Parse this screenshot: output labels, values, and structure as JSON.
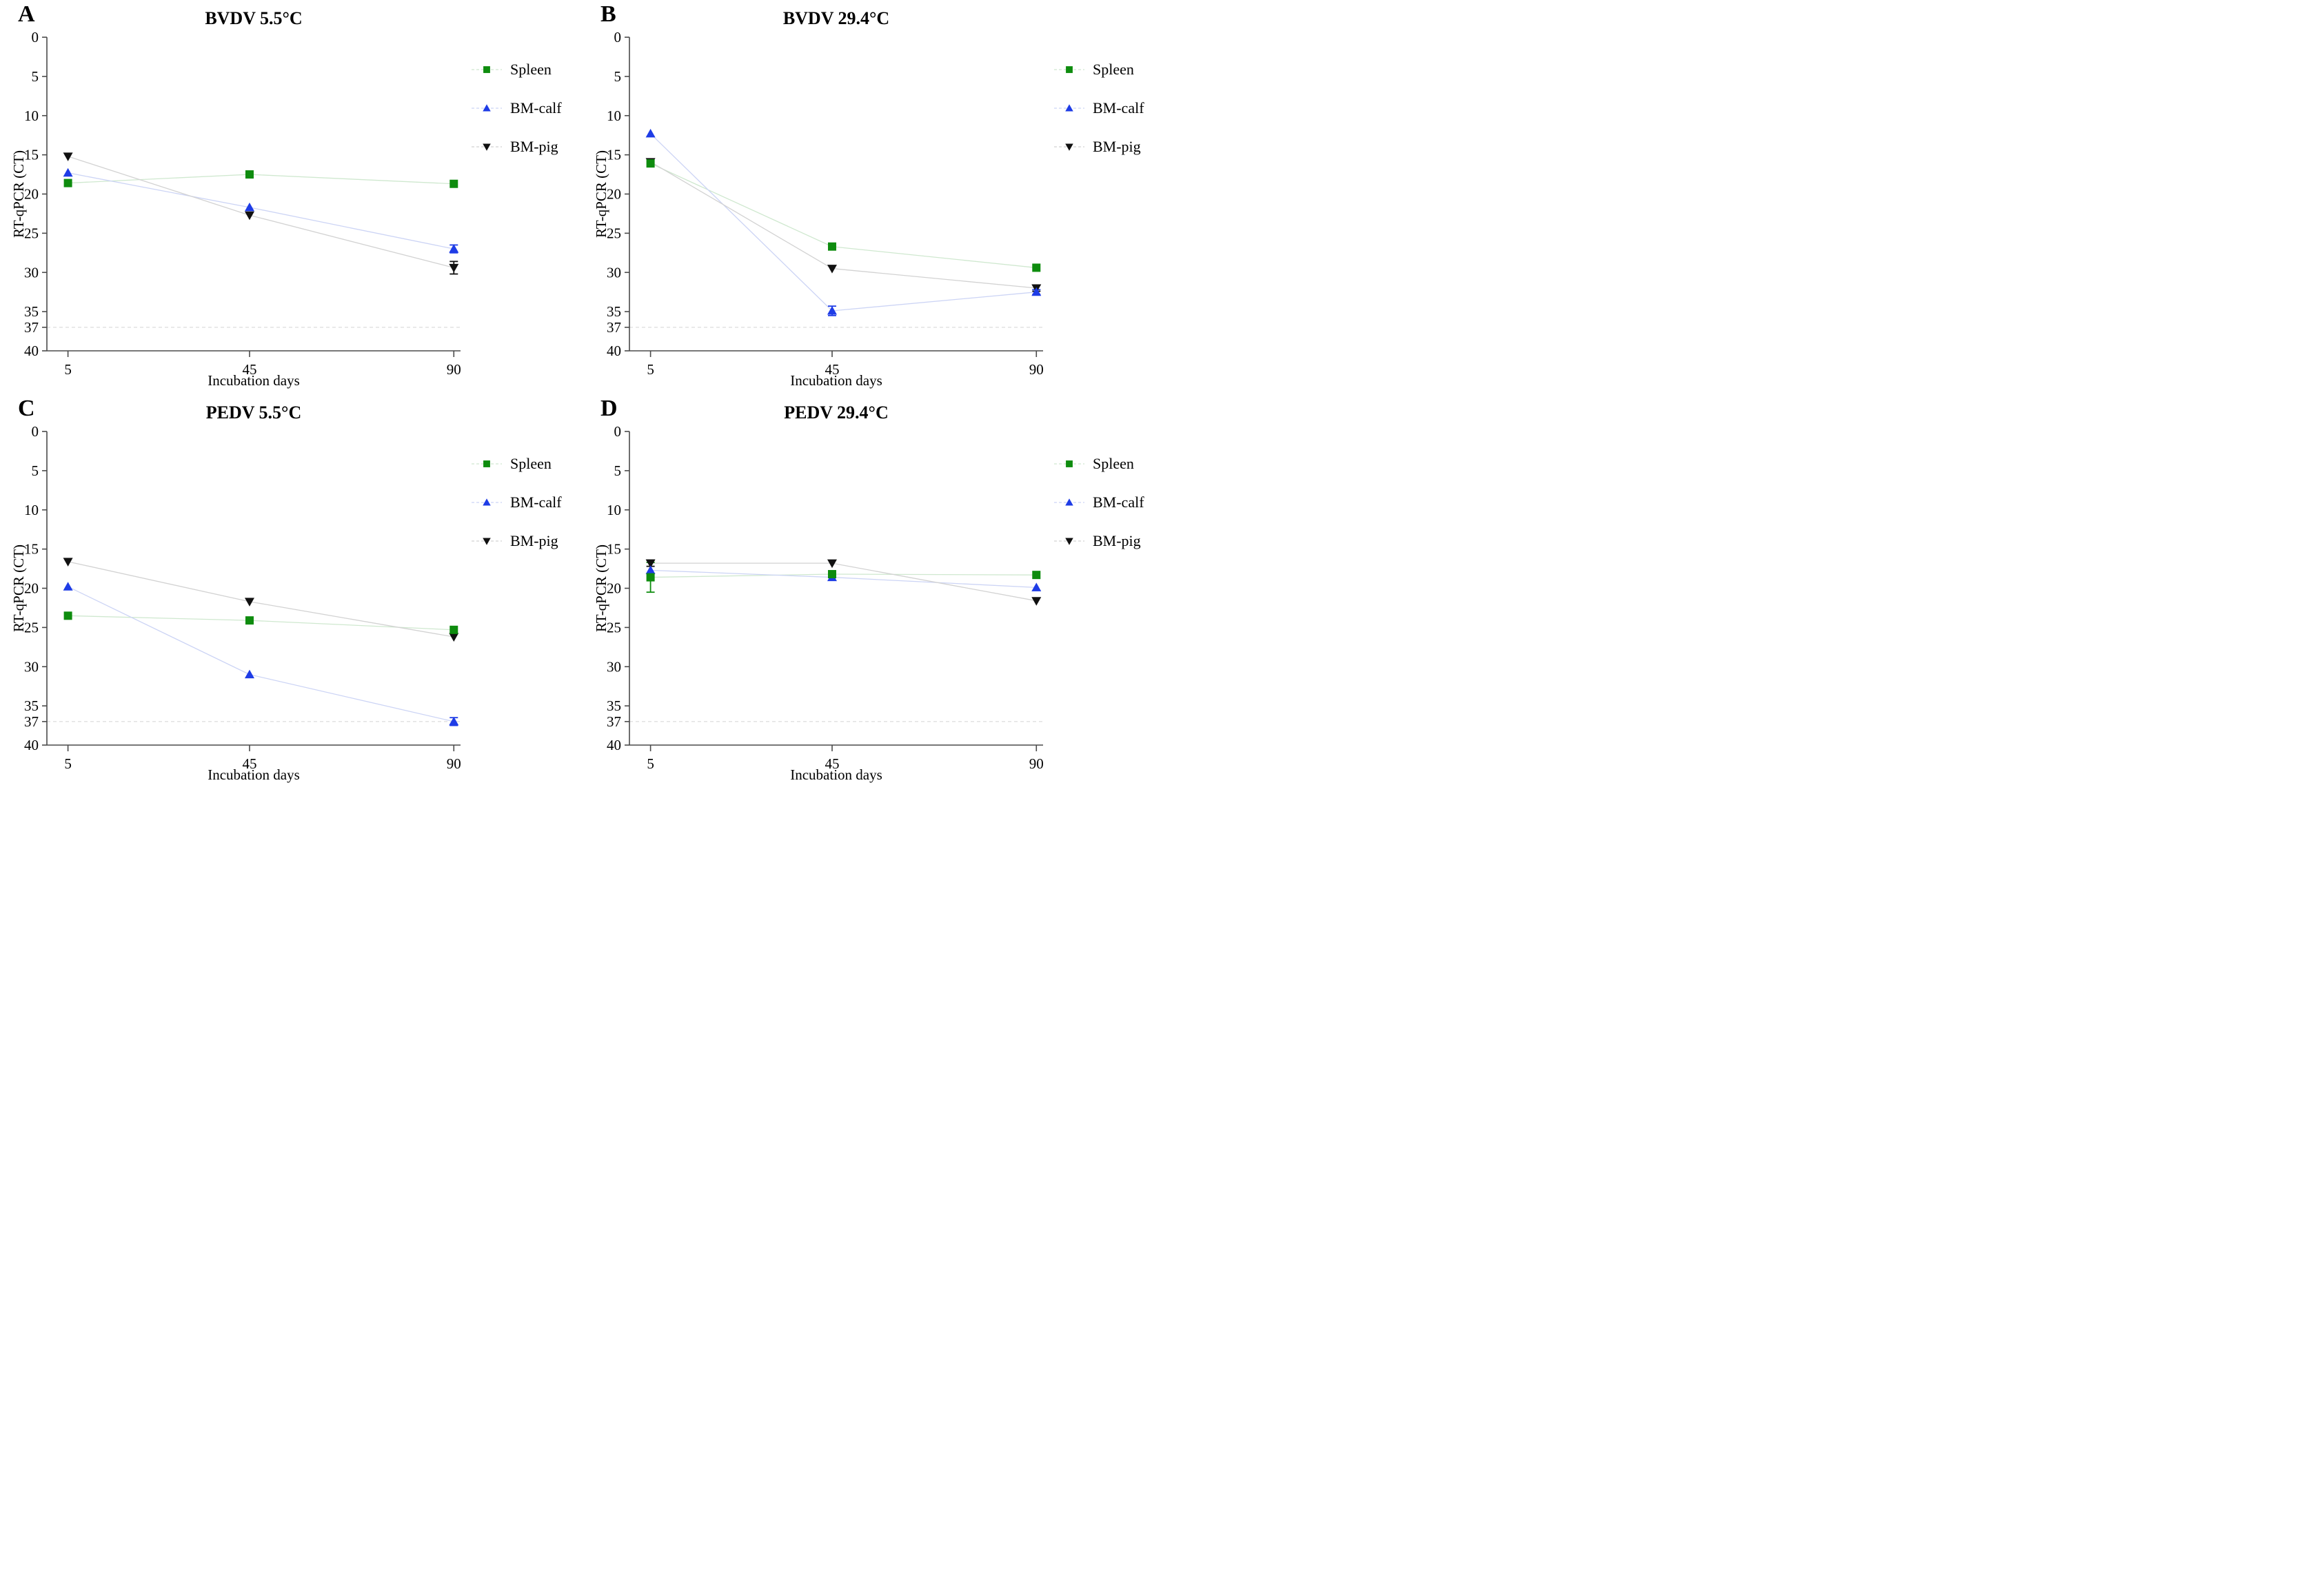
{
  "figure": {
    "y_label": "RT-qPCR (CT)",
    "x_label": "Incubation days",
    "y_ticks": [
      0,
      5,
      10,
      15,
      20,
      25,
      30,
      35,
      37,
      40
    ],
    "x_ticks": [
      5,
      45,
      90
    ],
    "y_max": 40,
    "threshold_value": 37,
    "axis_color": "#4a4a4a",
    "threshold_color": "#dcdcdc",
    "legend_labels": [
      "Spleen",
      "BM-calf",
      "BM-pig"
    ]
  },
  "chart_data": [
    {
      "type": "line",
      "letter": "A",
      "title": "BVDV 5.5°C",
      "xlabel": "Incubation days",
      "ylabel": "RT-qPCR (CT)",
      "x": [
        5,
        45,
        90
      ],
      "ylim": [
        0,
        40
      ],
      "series": [
        {
          "name": "Spleen",
          "marker": "square",
          "color": "#0e8c0e",
          "line_color": "#cfe8cf",
          "values": [
            18.6,
            17.5,
            18.7
          ],
          "errors": [
            0,
            0,
            0
          ]
        },
        {
          "name": "BM-calf",
          "marker": "triangle-up",
          "color": "#1e3ce6",
          "line_color": "#ccd4f5",
          "values": [
            17.3,
            21.7,
            27.0
          ],
          "errors": [
            0,
            0,
            0.5
          ]
        },
        {
          "name": "BM-pig",
          "marker": "triangle-down",
          "color": "#111111",
          "line_color": "#d2d2d2",
          "values": [
            15.2,
            22.7,
            29.4
          ],
          "errors": [
            0,
            0,
            0.8
          ]
        }
      ]
    },
    {
      "type": "line",
      "letter": "B",
      "title": "BVDV 29.4°C",
      "xlabel": "Incubation days",
      "ylabel": "RT-qPCR (CT)",
      "x": [
        5,
        45,
        90
      ],
      "ylim": [
        0,
        40
      ],
      "series": [
        {
          "name": "Spleen",
          "marker": "square",
          "color": "#0e8c0e",
          "line_color": "#cfe8cf",
          "values": [
            16.1,
            26.7,
            29.4
          ],
          "errors": [
            0,
            0,
            0
          ]
        },
        {
          "name": "BM-calf",
          "marker": "triangle-up",
          "color": "#1e3ce6",
          "line_color": "#ccd4f5",
          "values": [
            12.3,
            34.9,
            32.5
          ],
          "errors": [
            0,
            0.6,
            0.3
          ]
        },
        {
          "name": "BM-pig",
          "marker": "triangle-down",
          "color": "#111111",
          "line_color": "#d2d2d2",
          "values": [
            15.9,
            29.5,
            32.0
          ],
          "errors": [
            0,
            0,
            0.4
          ]
        }
      ]
    },
    {
      "type": "line",
      "letter": "C",
      "title": "PEDV 5.5°C",
      "xlabel": "Incubation days",
      "ylabel": "RT-qPCR (CT)",
      "x": [
        5,
        45,
        90
      ],
      "ylim": [
        0,
        40
      ],
      "series": [
        {
          "name": "Spleen",
          "marker": "square",
          "color": "#0e8c0e",
          "line_color": "#cfe8cf",
          "values": [
            23.5,
            24.1,
            25.3
          ],
          "errors": [
            0,
            0,
            0
          ]
        },
        {
          "name": "BM-calf",
          "marker": "triangle-up",
          "color": "#1e3ce6",
          "line_color": "#ccd4f5",
          "values": [
            19.8,
            31.0,
            37.0
          ],
          "errors": [
            0,
            0,
            0.5
          ]
        },
        {
          "name": "BM-pig",
          "marker": "triangle-down",
          "color": "#111111",
          "line_color": "#d2d2d2",
          "values": [
            16.6,
            21.7,
            26.2
          ],
          "errors": [
            0,
            0,
            0
          ]
        }
      ]
    },
    {
      "type": "line",
      "letter": "D",
      "title": "PEDV 29.4°C",
      "xlabel": "Incubation days",
      "ylabel": "RT-qPCR (CT)",
      "x": [
        5,
        45,
        90
      ],
      "ylim": [
        0,
        40
      ],
      "series": [
        {
          "name": "Spleen",
          "marker": "square",
          "color": "#0e8c0e",
          "line_color": "#cfe8cf",
          "values": [
            18.6,
            18.2,
            18.3
          ],
          "errors": [
            1.9,
            0,
            0
          ]
        },
        {
          "name": "BM-calf",
          "marker": "triangle-up",
          "color": "#1e3ce6",
          "line_color": "#ccd4f5",
          "values": [
            17.7,
            18.6,
            19.9
          ],
          "errors": [
            0,
            0,
            0
          ]
        },
        {
          "name": "BM-pig",
          "marker": "triangle-down",
          "color": "#111111",
          "line_color": "#d2d2d2",
          "values": [
            16.8,
            16.8,
            21.6
          ],
          "errors": [
            0.4,
            0,
            0
          ]
        }
      ]
    }
  ]
}
